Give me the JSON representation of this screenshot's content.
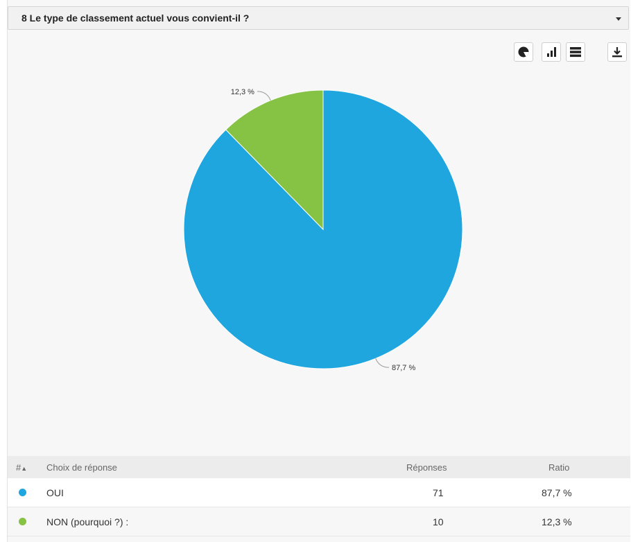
{
  "question": {
    "title": "8 Le type de classement actuel vous convient-il ?"
  },
  "toolbar": {
    "pie_icon": "pie-chart-icon",
    "bar_icon": "bar-chart-icon",
    "list_icon": "list-icon",
    "download_icon": "download-icon"
  },
  "colors": {
    "oui": "#1fa6df",
    "non": "#86c244"
  },
  "chart_data": {
    "type": "pie",
    "categories": [
      "OUI",
      "NON (pourquoi ?) :"
    ],
    "values": [
      87.7,
      12.3
    ],
    "labels": [
      "87,7 %",
      "12,3 %"
    ]
  },
  "table": {
    "headers": {
      "hash": "#",
      "sort": "▲",
      "choice": "Choix de réponse",
      "responses": "Réponses",
      "ratio": "Ratio"
    },
    "rows": [
      {
        "choice": "OUI",
        "responses": "71",
        "ratio": "87,7 %"
      },
      {
        "choice": "NON (pourquoi ?) :",
        "responses": "10",
        "ratio": "12,3 %"
      }
    ]
  }
}
